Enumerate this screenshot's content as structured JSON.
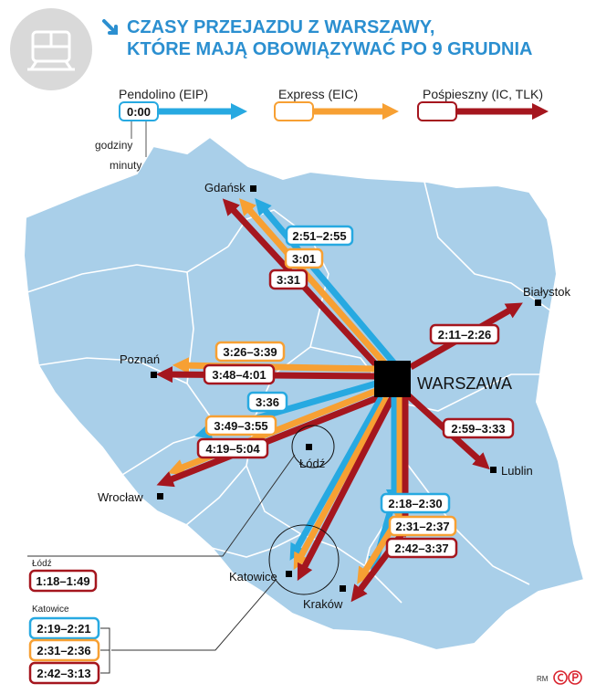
{
  "title": {
    "line1": "CZASY PRZEJAZDU Z WARSZAWY,",
    "line2": "KTÓRE MAJĄ OBOWIĄZYWAĆ PO 9 GRUDNIA",
    "icon": "train-icon"
  },
  "colors": {
    "pendolino": "#27a9e1",
    "express": "#f7a033",
    "pospieszny": "#a5161e",
    "map_fill": "#a9cfe9",
    "map_border": "#ffffff",
    "title": "#2b8fd0"
  },
  "legend": {
    "pendolino": {
      "label": "Pendolino (EIP)",
      "sample": "0:00"
    },
    "express": {
      "label": "Express (EIC)"
    },
    "pospieszny": {
      "label": "Pośpieszny (IC, TLK)"
    },
    "hours_note": "godziny",
    "minutes_note": "minuty"
  },
  "hub": {
    "name": "WARSZAWA"
  },
  "cities": {
    "gdansk": "Gdańsk",
    "bialystok": "Białystok",
    "poznan": "Poznań",
    "lublin": "Lublin",
    "lodz": "Łódź",
    "wroclaw": "Wrocław",
    "katowice": "Katowice",
    "krakow": "Kraków"
  },
  "times": {
    "gdansk": {
      "pendolino": "2:51–2:55",
      "express": "3:01",
      "pospieszny": "3:31"
    },
    "bialystok": {
      "pospieszny": "2:11–2:26"
    },
    "poznan": {
      "express": "3:26–3:39",
      "pospieszny": "3:48–4:01"
    },
    "lublin": {
      "pospieszny": "2:59–3:33"
    },
    "wroclaw": {
      "pendolino": "3:36",
      "express": "3:49–3:55",
      "pospieszny": "4:19–5:04"
    },
    "krakow": {
      "pendolino": "2:18–2:30",
      "express": "2:31–2:37",
      "pospieszny": "2:42–3:37"
    }
  },
  "callouts": {
    "lodz": {
      "label": "Łódź",
      "pospieszny": "1:18–1:49"
    },
    "katowice": {
      "label": "Katowice",
      "pendolino": "2:19–2:21",
      "express": "2:31–2:36",
      "pospieszny": "2:42–3:13"
    }
  },
  "credit": {
    "author": "RM",
    "logo": "cp-logo"
  }
}
